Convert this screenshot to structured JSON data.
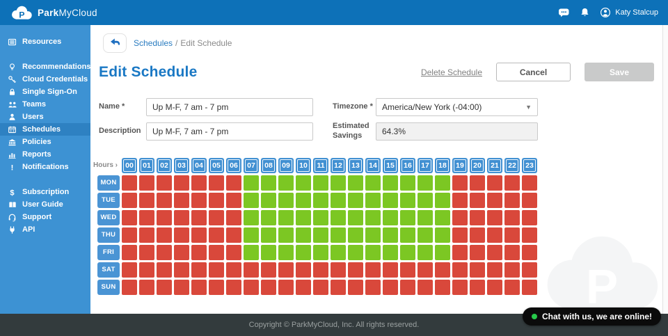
{
  "colors": {
    "topbar": "#0d71b8",
    "sidebar": "#3d92d3",
    "sidebar_active": "#2e81c2",
    "accent_blue": "#1a78c4",
    "cell_on": "#7cc723",
    "cell_off": "#d9483b",
    "grid_header_blue": "#4190d2",
    "footer_bg": "#333b3d",
    "chat_bg": "#0b0b0b",
    "chat_dot": "#27c94a",
    "save_disabled": "#c9caca"
  },
  "topbar": {
    "brand_bold": "Park",
    "brand_light": "MyCloud",
    "logo_icon": "parkmycloud-cloud-logo-icon",
    "icons": [
      "chat-icon",
      "bell-icon"
    ],
    "user": {
      "icon": "avatar-icon",
      "name": "Katy Stalcup"
    }
  },
  "sidebar": {
    "groups": [
      {
        "items": [
          {
            "icon": "resources-icon",
            "label": "Resources"
          }
        ]
      },
      {
        "items": [
          {
            "icon": "lightbulb-icon",
            "label": "Recommendations"
          },
          {
            "icon": "key-icon",
            "label": "Cloud Credentials"
          },
          {
            "icon": "lock-icon",
            "label": "Single Sign-On"
          },
          {
            "icon": "teams-icon",
            "label": "Teams"
          },
          {
            "icon": "user-icon",
            "label": "Users"
          },
          {
            "icon": "calendar-icon",
            "label": "Schedules",
            "active": true
          },
          {
            "icon": "bank-icon",
            "label": "Policies"
          },
          {
            "icon": "bar-chart-icon",
            "label": "Reports"
          },
          {
            "icon": "exclamation-icon",
            "label": "Notifications"
          }
        ]
      },
      {
        "items": [
          {
            "icon": "dollar-icon",
            "label": "Subscription"
          },
          {
            "icon": "book-icon",
            "label": "User Guide"
          },
          {
            "icon": "headset-icon",
            "label": "Support"
          },
          {
            "icon": "plug-icon",
            "label": "API"
          }
        ]
      }
    ]
  },
  "breadcrumb": {
    "back_icon": "back-arrow-icon",
    "link": "Schedules",
    "separator": "/",
    "current": "Edit Schedule"
  },
  "page": {
    "title": "Edit Schedule",
    "delete_link": "Delete Schedule",
    "cancel_label": "Cancel",
    "save_label": "Save"
  },
  "form": {
    "name": {
      "label": "Name *",
      "value": "Up M-F, 7 am - 7 pm"
    },
    "description": {
      "label": "Description",
      "value": "Up M-F, 7 am - 7 pm"
    },
    "timezone": {
      "label": "Timezone *",
      "value": "America/New York (-04:00)",
      "dropdown_icon": "chevron-down-icon"
    },
    "savings": {
      "label_line1": "Estimated",
      "label_line2": "Savings",
      "value": "64.3%"
    }
  },
  "schedule_grid": {
    "corner_label": "Hours ›",
    "hours": [
      "00",
      "01",
      "02",
      "03",
      "04",
      "05",
      "06",
      "07",
      "08",
      "09",
      "10",
      "11",
      "12",
      "13",
      "14",
      "15",
      "16",
      "17",
      "18",
      "19",
      "20",
      "21",
      "22",
      "23"
    ],
    "legend": {
      "on": "running (green)",
      "off": "parked (red)"
    },
    "days": [
      {
        "label": "MON",
        "cells": [
          0,
          0,
          0,
          0,
          0,
          0,
          0,
          1,
          1,
          1,
          1,
          1,
          1,
          1,
          1,
          1,
          1,
          1,
          1,
          0,
          0,
          0,
          0,
          0
        ]
      },
      {
        "label": "TUE",
        "cells": [
          0,
          0,
          0,
          0,
          0,
          0,
          0,
          1,
          1,
          1,
          1,
          1,
          1,
          1,
          1,
          1,
          1,
          1,
          1,
          0,
          0,
          0,
          0,
          0
        ]
      },
      {
        "label": "WED",
        "cells": [
          0,
          0,
          0,
          0,
          0,
          0,
          0,
          1,
          1,
          1,
          1,
          1,
          1,
          1,
          1,
          1,
          1,
          1,
          1,
          0,
          0,
          0,
          0,
          0
        ]
      },
      {
        "label": "THU",
        "cells": [
          0,
          0,
          0,
          0,
          0,
          0,
          0,
          1,
          1,
          1,
          1,
          1,
          1,
          1,
          1,
          1,
          1,
          1,
          1,
          0,
          0,
          0,
          0,
          0
        ]
      },
      {
        "label": "FRI",
        "cells": [
          0,
          0,
          0,
          0,
          0,
          0,
          0,
          1,
          1,
          1,
          1,
          1,
          1,
          1,
          1,
          1,
          1,
          1,
          1,
          0,
          0,
          0,
          0,
          0
        ]
      },
      {
        "label": "SAT",
        "cells": [
          0,
          0,
          0,
          0,
          0,
          0,
          0,
          0,
          0,
          0,
          0,
          0,
          0,
          0,
          0,
          0,
          0,
          0,
          0,
          0,
          0,
          0,
          0,
          0
        ]
      },
      {
        "label": "SUN",
        "cells": [
          0,
          0,
          0,
          0,
          0,
          0,
          0,
          0,
          0,
          0,
          0,
          0,
          0,
          0,
          0,
          0,
          0,
          0,
          0,
          0,
          0,
          0,
          0,
          0
        ]
      }
    ]
  },
  "footer": {
    "copyright": "Copyright © ParkMyCloud, Inc. All rights reserved."
  },
  "chat": {
    "status_icon": "online-dot-icon",
    "text": "Chat with us, we are online!"
  },
  "watermark": {
    "icon": "parkmycloud-watermark-icon"
  }
}
